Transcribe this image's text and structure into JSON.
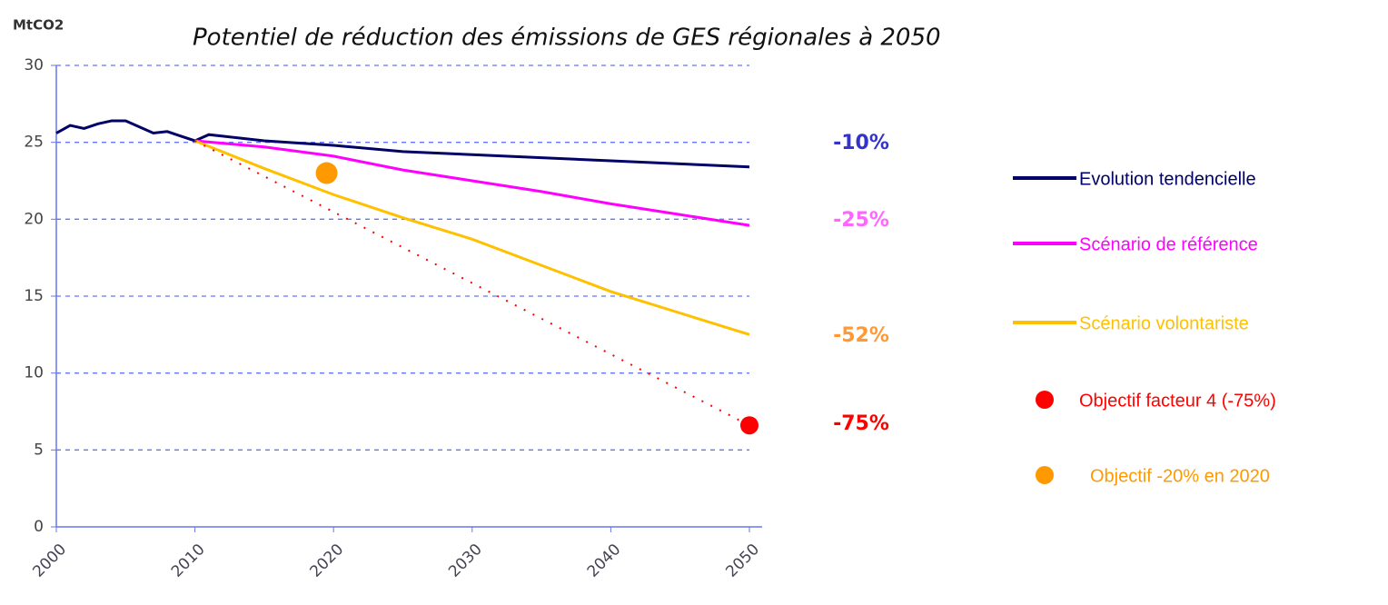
{
  "chart_data": {
    "type": "line",
    "title": "Potentiel de réduction des émissions de GES régionales à 2050",
    "y_label": "MtCO2",
    "xlim": [
      2000,
      2050
    ],
    "xticks": [
      2000,
      2010,
      2020,
      2030,
      2040,
      2050
    ],
    "ylim": [
      0,
      30
    ],
    "yticks": [
      0,
      5,
      10,
      15,
      20,
      25,
      30
    ],
    "grid": true,
    "series": [
      {
        "name": "Evolution tendencielle",
        "color": "#000066",
        "style": "line",
        "x": [
          2000,
          2001,
          2002,
          2003,
          2004,
          2005,
          2006,
          2007,
          2008,
          2009,
          2010,
          2011,
          2012,
          2015,
          2020,
          2025,
          2030,
          2035,
          2040,
          2045,
          2050
        ],
        "values": [
          25.6,
          26.1,
          25.9,
          26.2,
          26.4,
          26.4,
          26.0,
          25.6,
          25.7,
          25.4,
          25.1,
          25.5,
          25.4,
          25.1,
          24.8,
          24.4,
          24.2,
          24.0,
          23.8,
          23.6,
          23.4
        ]
      },
      {
        "name": "Scénario de référence",
        "color": "#ff00ff",
        "style": "line",
        "x": [
          2010,
          2015,
          2020,
          2025,
          2030,
          2035,
          2040,
          2045,
          2050
        ],
        "values": [
          25.1,
          24.7,
          24.1,
          23.2,
          22.5,
          21.8,
          21.0,
          20.3,
          19.6
        ]
      },
      {
        "name": "Scénario volontariste",
        "color": "#ffc000",
        "style": "line",
        "x": [
          2010,
          2015,
          2020,
          2025,
          2030,
          2035,
          2040,
          2045,
          2050
        ],
        "values": [
          25.1,
          23.3,
          21.6,
          20.1,
          18.7,
          17.0,
          15.3,
          13.9,
          12.5
        ]
      },
      {
        "name": "Objectif facteur 4 (-75%)",
        "color": "#ff0000",
        "style": "dotted",
        "x": [
          2010,
          2050
        ],
        "values": [
          25.1,
          6.6
        ]
      },
      {
        "name": "Objectif -20% en 2020",
        "color": "#ff9900",
        "style": "point",
        "x": [
          2019.5
        ],
        "values": [
          23.0
        ]
      }
    ],
    "annotations": [
      {
        "text": "-10%",
        "color": "#3333cc"
      },
      {
        "text": "-25%",
        "color": "#ff66ff"
      },
      {
        "text": "-52%",
        "color": "#ff9933"
      },
      {
        "text": "-75%",
        "color": "#ff0000"
      }
    ]
  }
}
